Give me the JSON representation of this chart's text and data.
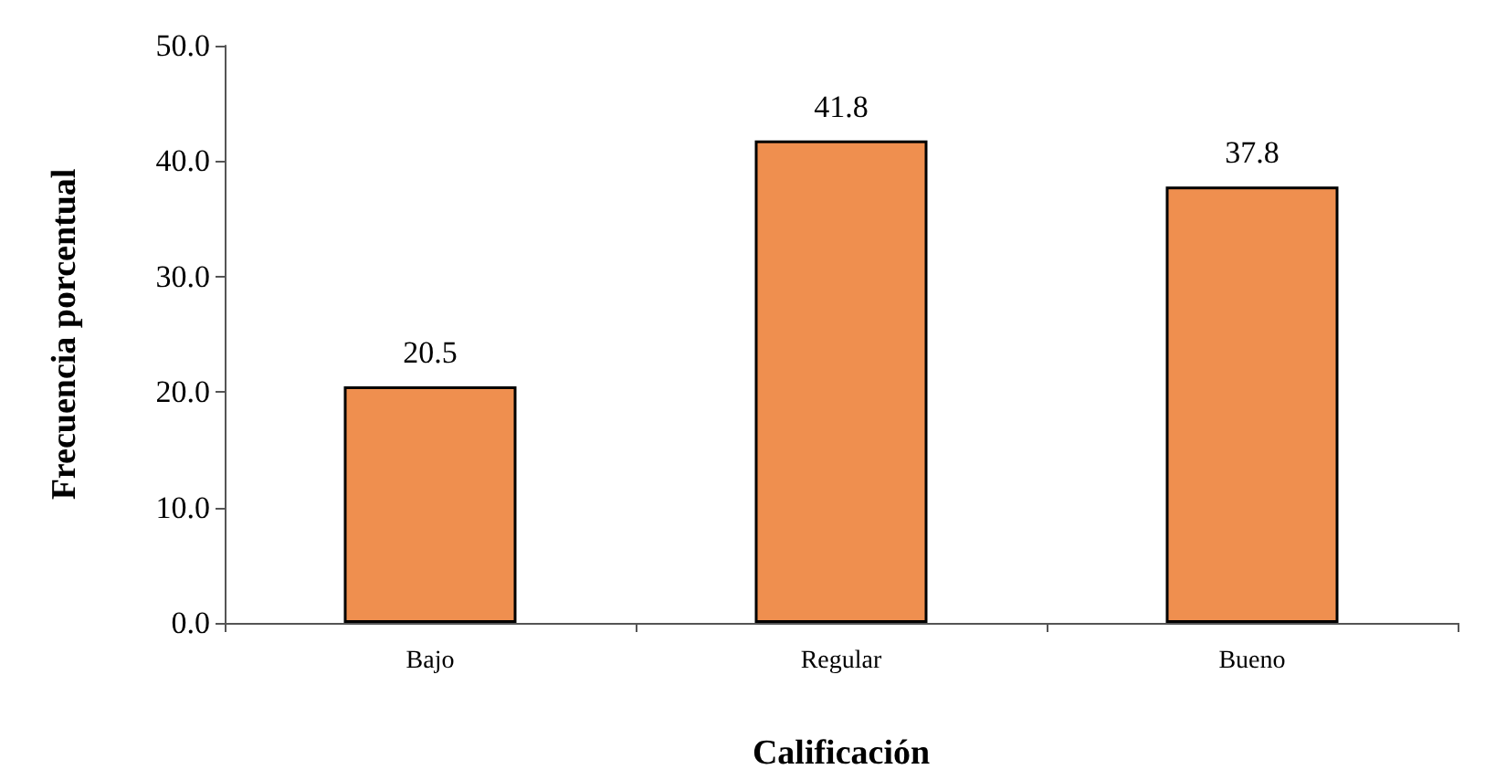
{
  "chart_data": {
    "type": "bar",
    "xlabel": "Calificación",
    "ylabel": "Frecuencia porcentual",
    "categories": [
      "Bajo",
      "Regular",
      "Bueno"
    ],
    "values": [
      20.5,
      41.8,
      37.8
    ],
    "color": "#ef8f4f",
    "ylim": [
      0,
      50
    ],
    "yticks": [
      {
        "value": 0,
        "label": "0.0"
      },
      {
        "value": 10,
        "label": "10.0"
      },
      {
        "value": 20,
        "label": "20.0"
      },
      {
        "value": 30,
        "label": "30.0"
      },
      {
        "value": 40,
        "label": "40.0"
      },
      {
        "value": 50,
        "label": "50.0"
      }
    ],
    "data_labels": true,
    "grid": false
  }
}
